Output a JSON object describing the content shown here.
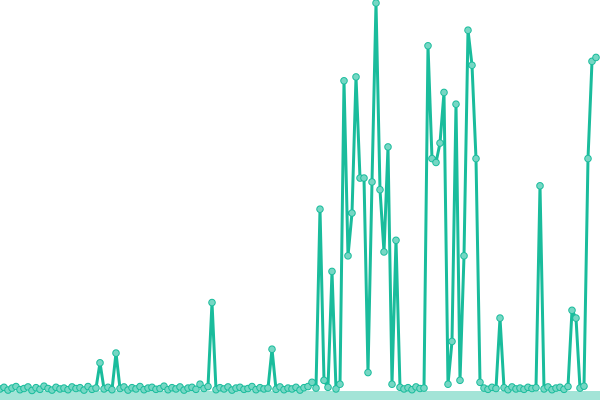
{
  "chart_data": {
    "type": "line",
    "title": "",
    "xlabel": "",
    "ylabel": "",
    "grid": false,
    "axes_visible": false,
    "markers": true,
    "ylim": [
      0,
      100
    ],
    "colors": {
      "line": "#1abc9c",
      "marker_fill": "#76d7c4",
      "baseline_band": "#a3e4d7"
    },
    "series": [
      {
        "values": [
          0.8,
          1.2,
          0.5,
          1.0,
          1.4,
          0.6,
          0.9,
          1.3,
          0.4,
          1.1,
          0.7,
          1.5,
          0.9,
          0.5,
          1.2,
          0.8,
          1.0,
          0.6,
          1.3,
          0.9,
          1.1,
          0.5,
          1.4,
          0.7,
          1.0,
          7.5,
          0.8,
          1.2,
          0.6,
          10,
          0.9,
          1.3,
          0.5,
          1.1,
          0.8,
          1.4,
          0.6,
          1.0,
          1.2,
          0.7,
          0.9,
          1.5,
          0.6,
          1.1,
          0.8,
          1.3,
          0.5,
          1.0,
          1.2,
          0.7,
          2.0,
          0.9,
          1.4,
          23,
          0.6,
          1.1,
          0.8,
          1.3,
          0.5,
          1.0,
          1.2,
          0.7,
          0.9,
          1.4,
          0.6,
          1.1,
          0.8,
          1.0,
          11,
          0.7,
          1.3,
          0.6,
          1.0,
          0.8,
          1.2,
          0.5,
          1.1,
          1.4,
          2.5,
          1.0,
          47,
          3,
          1.2,
          31,
          0.8,
          2,
          80,
          35,
          46,
          81,
          55,
          55,
          5,
          54,
          100,
          52,
          36,
          63,
          2,
          39,
          1.2,
          0.8,
          1.1,
          0.6,
          1.3,
          0.9,
          1.0,
          89,
          60,
          59,
          64,
          77,
          2,
          13,
          74,
          3,
          35,
          93,
          84,
          60,
          2.5,
          1.0,
          0.7,
          1.2,
          0.9,
          19,
          1.1,
          0.6,
          1.3,
          0.8,
          1.0,
          0.7,
          1.2,
          0.9,
          1.1,
          53,
          0.8,
          1.3,
          0.6,
          1.0,
          1.2,
          0.7,
          1.4,
          21,
          19,
          1.0,
          1.5,
          60,
          85,
          86
        ]
      }
    ]
  }
}
